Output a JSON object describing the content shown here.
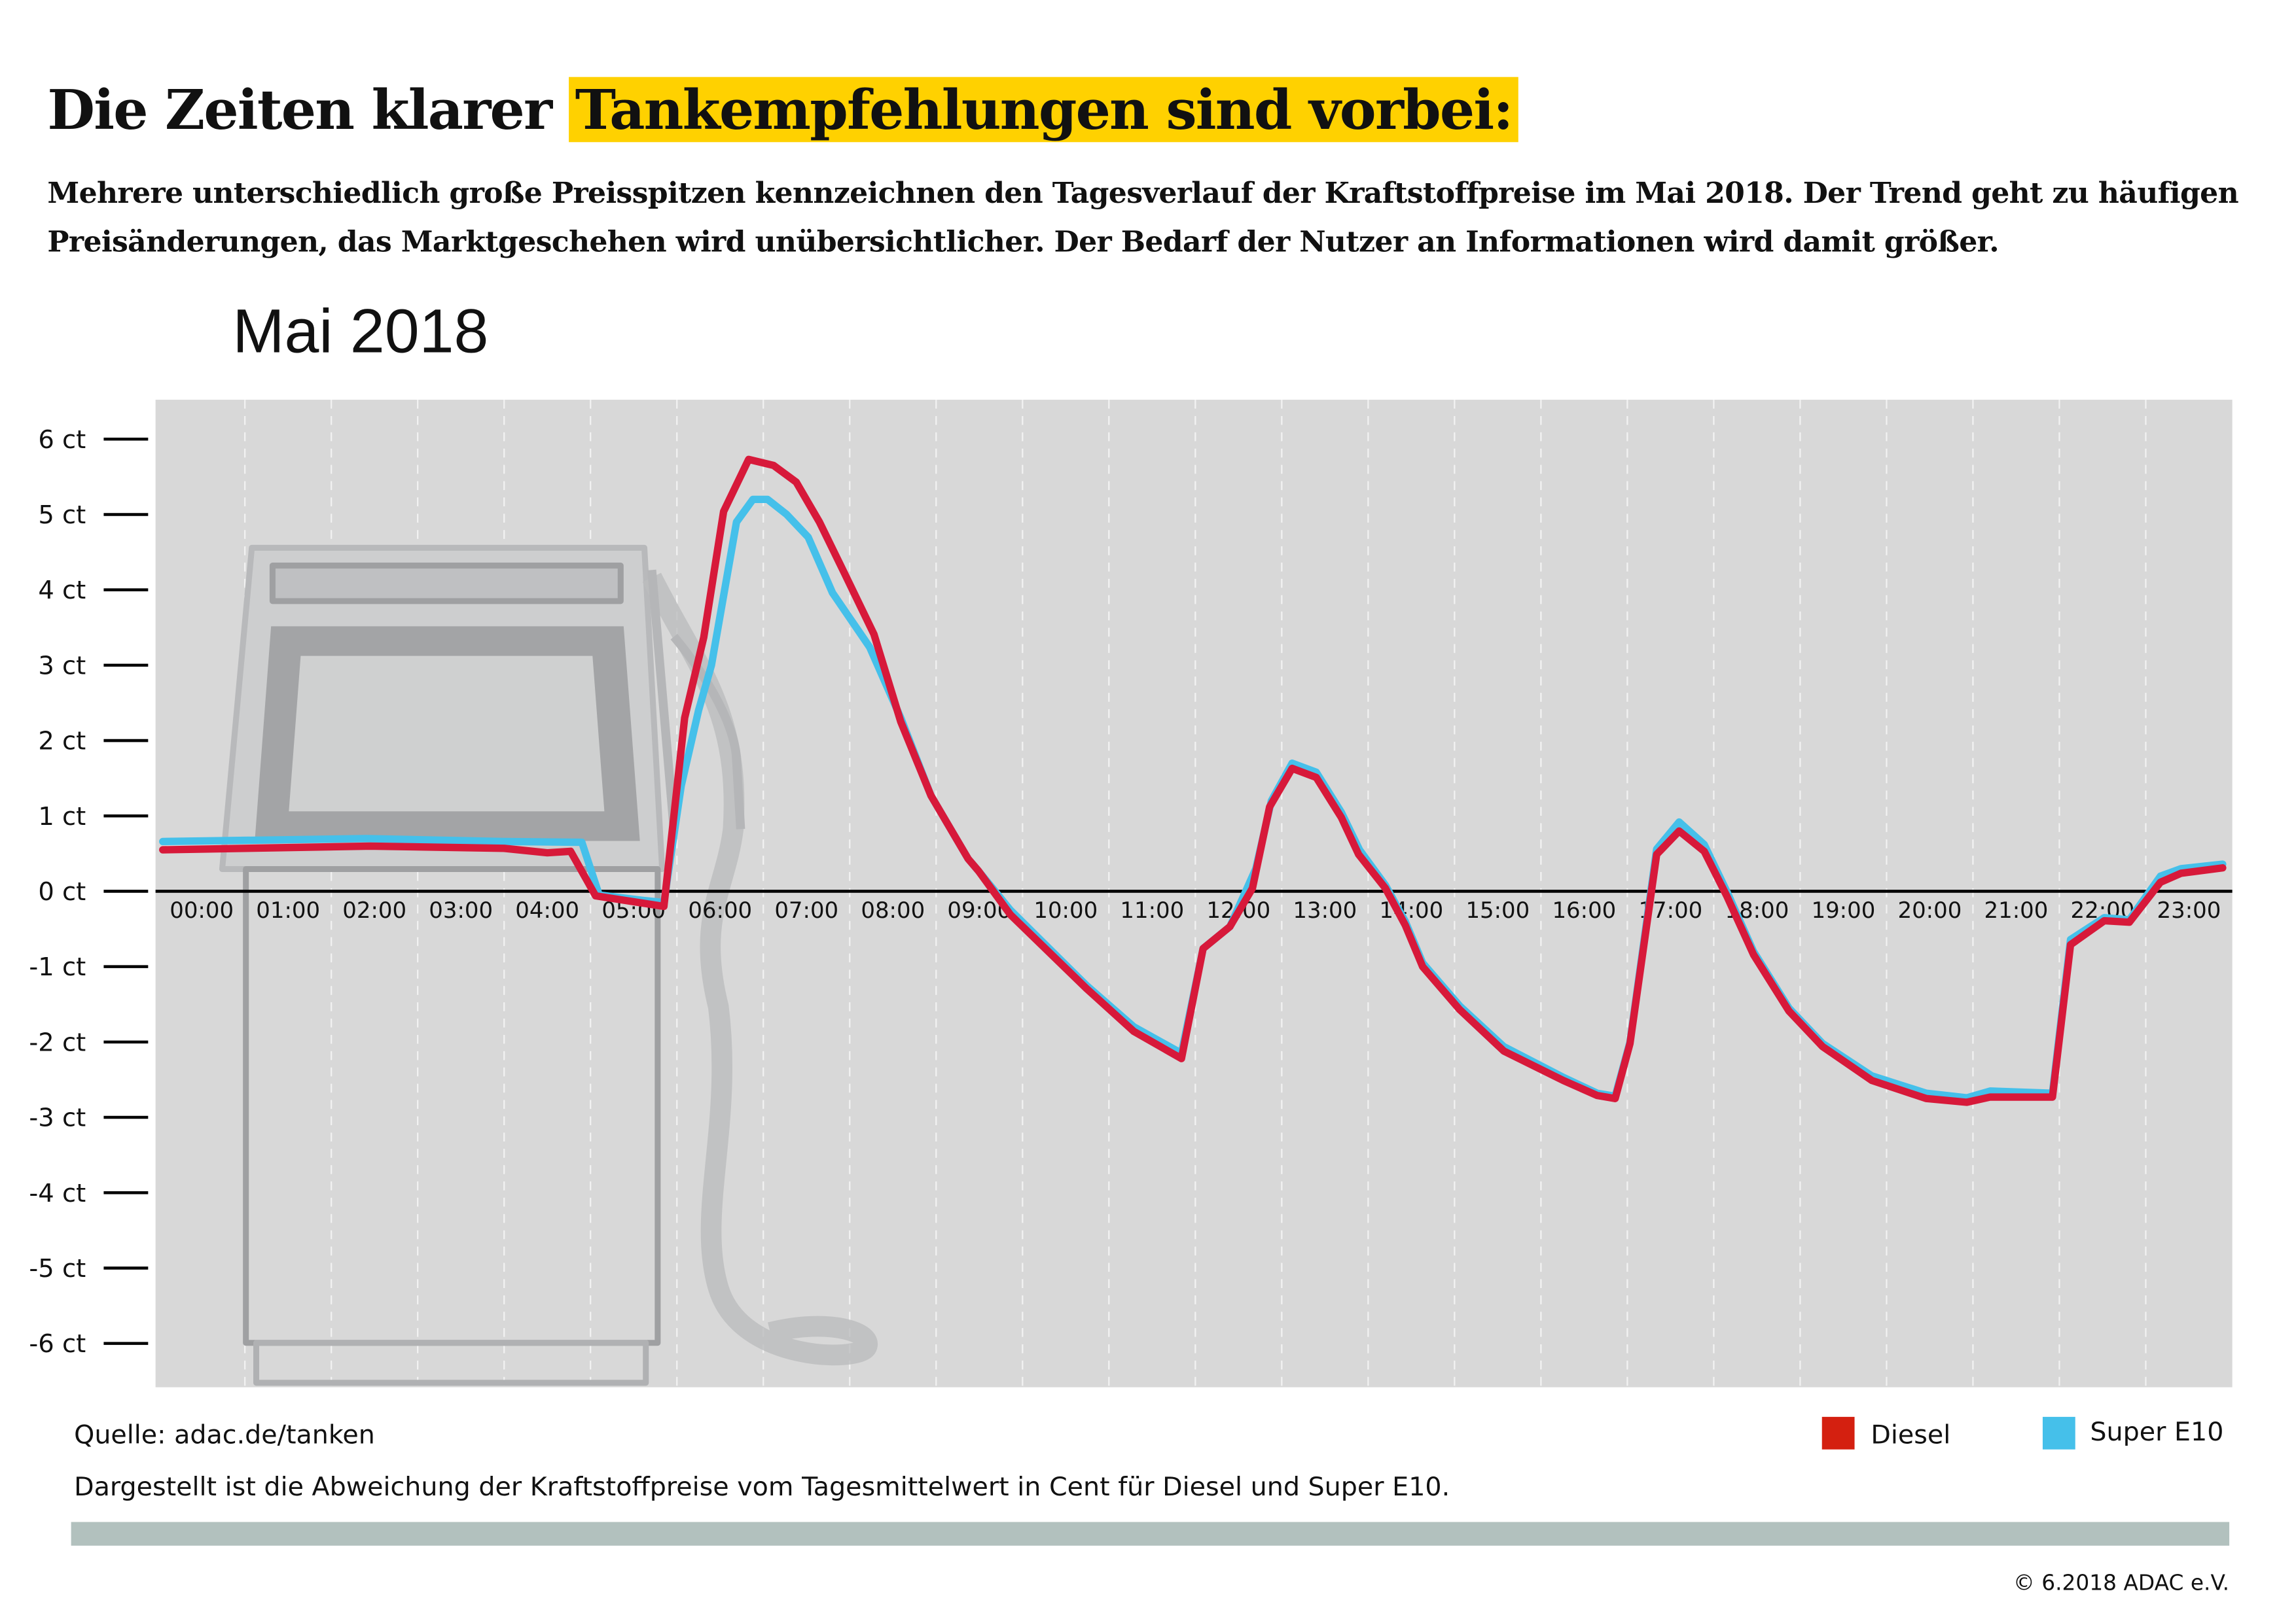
{
  "title": {
    "plain": "Die Zeiten klarer ",
    "highlight": "Tankempfehlungen sind vorbei:"
  },
  "subtitle": "Mehrere unterschiedlich große Preisspitzen kennzeichnen den Tagesverlauf der Kraftstoffpreise im Mai 2018. Der Trend geht zu häufigen Preisänderungen, das Marktgeschehen wird unübersichtlicher. Der Bedarf der Nutzer an Informationen wird damit größer.",
  "month_label": "Mai 2018",
  "source": "Quelle: adac.de/tanken",
  "note": "Dargestellt ist die Abweichung der Kraftstoffpreise vom Tagesmittelwert in Cent für Diesel und Super E10.",
  "copyright": "© 6.2018 ADAC e.V.",
  "colors": {
    "diesel": "#d7193a",
    "diesel_legend": "#d42010",
    "super_e10": "#45c0ea",
    "highlight": "#ffd100",
    "plot_bg": "#d8d8d8",
    "bar": "#b2c1be"
  },
  "chart_data": {
    "type": "line",
    "xlabel": "",
    "ylabel": "",
    "xlim": [
      0,
      24
    ],
    "ylim": [
      -6.6,
      6.5
    ],
    "grid": "vertical dashed lines at each hour",
    "legend_placement": "bottom-right",
    "y_ticks": [
      6,
      5,
      4,
      3,
      2,
      1,
      0,
      -1,
      -2,
      -3,
      -4,
      -5,
      -6
    ],
    "y_tick_labels": [
      "6 ct",
      "5 ct",
      "4 ct",
      "3 ct",
      "2 ct",
      "1 ct",
      "0 ct",
      "-1 ct",
      "-2 ct",
      "-3 ct",
      "-4 ct",
      "-5 ct",
      "-6 ct"
    ],
    "x_tick_labels": [
      "00:00",
      "01:00",
      "02:00",
      "03:00",
      "04:00",
      "05:00",
      "06:00",
      "07:00",
      "08:00",
      "09:00",
      "10:00",
      "11:00",
      "12:00",
      "13:00",
      "14:00",
      "15:00",
      "16:00",
      "17:00",
      "18:00",
      "19:00",
      "20:00",
      "21:00",
      "22:00",
      "23:00"
    ],
    "series": [
      {
        "name": "Super E10",
        "color": "#45c0ea",
        "points": [
          [
            0.05,
            0.66
          ],
          [
            2.4,
            0.7
          ],
          [
            4.0,
            0.66
          ],
          [
            4.9,
            0.65
          ],
          [
            5.1,
            -0.05
          ],
          [
            5.6,
            -0.12
          ],
          [
            5.85,
            -0.15
          ],
          [
            6.05,
            1.4
          ],
          [
            6.25,
            2.4
          ],
          [
            6.4,
            3.0
          ],
          [
            6.69,
            4.9
          ],
          [
            6.88,
            5.2
          ],
          [
            7.05,
            5.2
          ],
          [
            7.27,
            5.0
          ],
          [
            7.52,
            4.7
          ],
          [
            7.8,
            3.96
          ],
          [
            8.23,
            3.24
          ],
          [
            8.59,
            2.3
          ],
          [
            8.94,
            1.27
          ],
          [
            9.37,
            0.43
          ],
          [
            9.49,
            0.27
          ],
          [
            9.86,
            -0.25
          ],
          [
            10.74,
            -1.25
          ],
          [
            11.29,
            -1.8
          ],
          [
            11.84,
            -2.15
          ],
          [
            12.09,
            -0.76
          ],
          [
            12.4,
            -0.47
          ],
          [
            12.7,
            0.3
          ],
          [
            12.88,
            1.2
          ],
          [
            13.12,
            1.7
          ],
          [
            13.4,
            1.58
          ],
          [
            13.69,
            1.05
          ],
          [
            13.9,
            0.55
          ],
          [
            14.2,
            0.08
          ],
          [
            14.43,
            -0.4
          ],
          [
            14.63,
            -0.95
          ],
          [
            15.06,
            -1.52
          ],
          [
            15.57,
            -2.06
          ],
          [
            16.26,
            -2.47
          ],
          [
            16.65,
            -2.68
          ],
          [
            16.86,
            -2.72
          ],
          [
            17.03,
            -2.0
          ],
          [
            17.34,
            0.56
          ],
          [
            17.6,
            0.92
          ],
          [
            17.89,
            0.62
          ],
          [
            18.15,
            0.0
          ],
          [
            18.46,
            -0.8
          ],
          [
            18.87,
            -1.55
          ],
          [
            19.26,
            -2.02
          ],
          [
            19.83,
            -2.45
          ],
          [
            20.46,
            -2.68
          ],
          [
            20.93,
            -2.74
          ],
          [
            21.2,
            -2.65
          ],
          [
            21.92,
            -2.68
          ],
          [
            22.13,
            -0.64
          ],
          [
            22.52,
            -0.35
          ],
          [
            22.81,
            -0.38
          ],
          [
            23.17,
            0.2
          ],
          [
            23.41,
            0.3
          ],
          [
            23.89,
            0.36
          ]
        ]
      },
      {
        "name": "Diesel",
        "color": "#d7193a",
        "points": [
          [
            0.05,
            0.55
          ],
          [
            2.45,
            0.6
          ],
          [
            4.0,
            0.57
          ],
          [
            4.5,
            0.51
          ],
          [
            4.77,
            0.53
          ],
          [
            5.06,
            -0.06
          ],
          [
            5.85,
            -0.2
          ],
          [
            6.09,
            2.3
          ],
          [
            6.31,
            3.37
          ],
          [
            6.54,
            5.04
          ],
          [
            6.83,
            5.73
          ],
          [
            7.12,
            5.65
          ],
          [
            7.38,
            5.43
          ],
          [
            7.65,
            4.9
          ],
          [
            7.94,
            4.22
          ],
          [
            8.28,
            3.41
          ],
          [
            8.59,
            2.25
          ],
          [
            8.94,
            1.27
          ],
          [
            9.37,
            0.43
          ],
          [
            9.49,
            0.27
          ],
          [
            9.86,
            -0.31
          ],
          [
            10.74,
            -1.29
          ],
          [
            11.29,
            -1.86
          ],
          [
            11.84,
            -2.22
          ],
          [
            12.09,
            -0.76
          ],
          [
            12.4,
            -0.47
          ],
          [
            12.66,
            0.04
          ],
          [
            12.86,
            1.12
          ],
          [
            13.12,
            1.63
          ],
          [
            13.4,
            1.51
          ],
          [
            13.69,
            0.98
          ],
          [
            13.89,
            0.49
          ],
          [
            14.2,
            0.04
          ],
          [
            14.43,
            -0.45
          ],
          [
            14.63,
            -1.0
          ],
          [
            15.06,
            -1.57
          ],
          [
            15.57,
            -2.12
          ],
          [
            16.26,
            -2.51
          ],
          [
            16.65,
            -2.71
          ],
          [
            16.86,
            -2.75
          ],
          [
            17.03,
            -2.02
          ],
          [
            17.34,
            0.49
          ],
          [
            17.6,
            0.8
          ],
          [
            17.89,
            0.53
          ],
          [
            18.15,
            -0.06
          ],
          [
            18.46,
            -0.84
          ],
          [
            18.87,
            -1.59
          ],
          [
            19.26,
            -2.06
          ],
          [
            19.83,
            -2.51
          ],
          [
            20.46,
            -2.75
          ],
          [
            20.93,
            -2.8
          ],
          [
            21.2,
            -2.73
          ],
          [
            21.92,
            -2.73
          ],
          [
            22.13,
            -0.71
          ],
          [
            22.52,
            -0.39
          ],
          [
            22.81,
            -0.41
          ],
          [
            23.17,
            0.12
          ],
          [
            23.41,
            0.24
          ],
          [
            23.89,
            0.31
          ]
        ]
      }
    ]
  },
  "legend": [
    {
      "label": "Diesel"
    },
    {
      "label": "Super E10"
    }
  ]
}
